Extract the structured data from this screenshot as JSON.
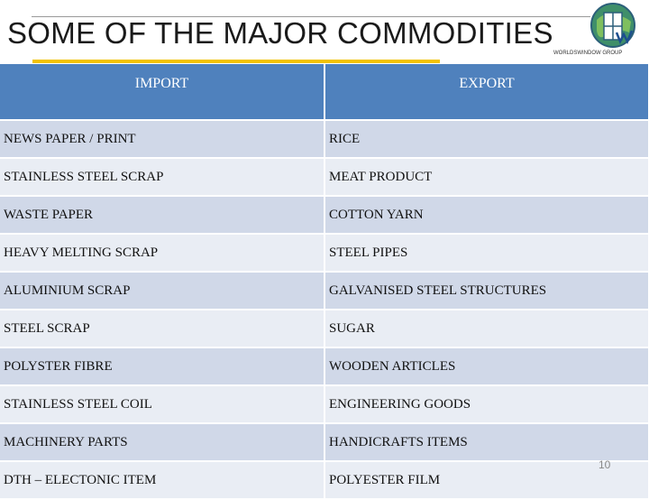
{
  "slide": {
    "title": "SOME OF THE MAJOR COMMODITIES",
    "logo_text": "WORLDSWINDOW GROUP",
    "page_number": "10"
  },
  "table": {
    "headers": [
      "IMPORT",
      "EXPORT"
    ],
    "rows": [
      [
        "NEWS PAPER / PRINT",
        "RICE"
      ],
      [
        "STAINLESS STEEL SCRAP",
        "MEAT PRODUCT"
      ],
      [
        "WASTE PAPER",
        "COTTON YARN"
      ],
      [
        "HEAVY MELTING SCRAP",
        "STEEL PIPES"
      ],
      [
        "ALUMINIUM SCRAP",
        "GALVANISED STEEL STRUCTURES"
      ],
      [
        "STEEL SCRAP",
        "SUGAR"
      ],
      [
        "POLYSTER FIBRE",
        "WOODEN ARTICLES"
      ],
      [
        "STAINLESS STEEL COIL",
        "ENGINEERING GOODS"
      ],
      [
        "MACHINERY PARTS",
        "HANDICRAFTS ITEMS"
      ],
      [
        "DTH – ELECTONIC ITEM",
        "POLYESTER FILM"
      ]
    ]
  },
  "colors": {
    "header_bg": "#4f81bd",
    "row_odd": "#d0d8e8",
    "row_even": "#e9edf4",
    "accent_underline": "#f2c200"
  }
}
